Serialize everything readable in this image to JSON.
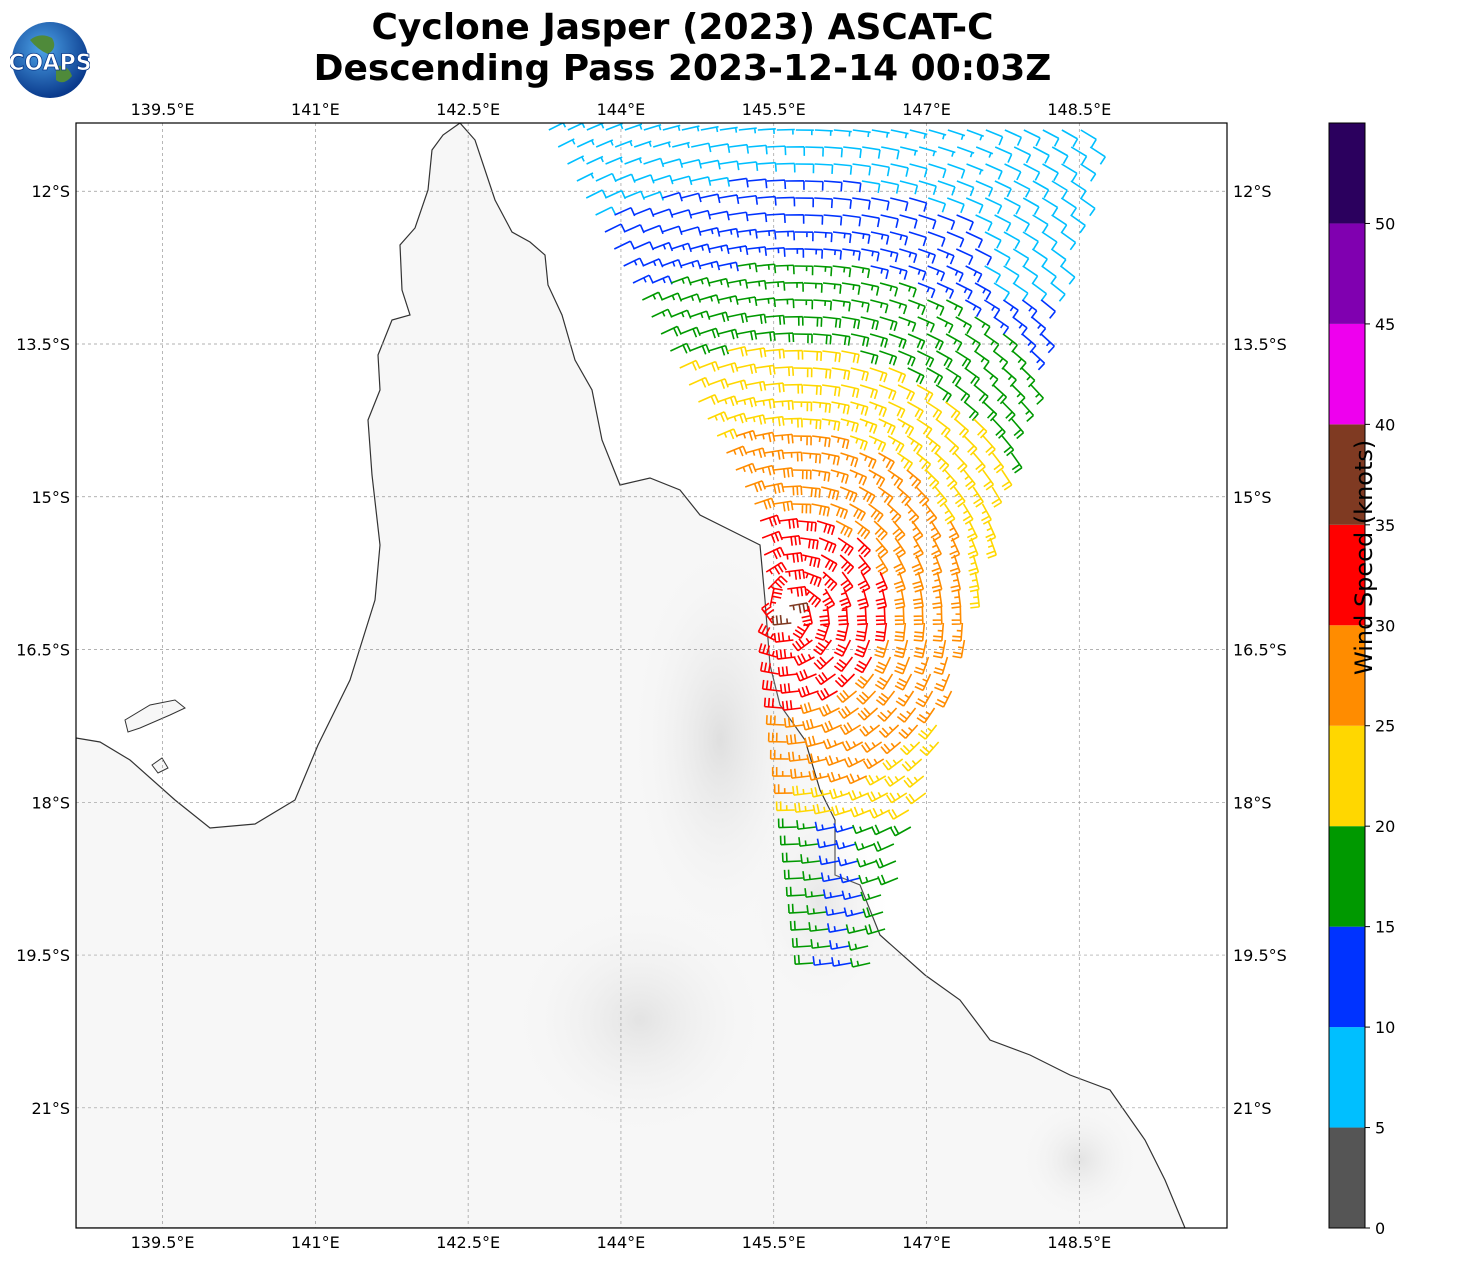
{
  "title": {
    "line1": "Cyclone Jasper (2023) ASCAT-C",
    "line2": "Descending Pass 2023-12-14 00:03Z"
  },
  "logo": {
    "text": "COAPS",
    "icon": "globe-logo-icon"
  },
  "map": {
    "lon_range": [
      138.65,
      149.95
    ],
    "lat_range": [
      -22.18,
      -11.33
    ],
    "lon_ticks": [
      "139.5°E",
      "141°E",
      "142.5°E",
      "144°E",
      "145.5°E",
      "147°E",
      "148.5°E"
    ],
    "lat_ticks": [
      "12°S",
      "13.5°S",
      "15°S",
      "16.5°S",
      "18°S",
      "19.5°S",
      "21°S"
    ],
    "gridlines": true,
    "background": "terrain-greyscale"
  },
  "colorbar": {
    "label": "Wind Speed (knots)",
    "ticks": [
      "0",
      "5",
      "10",
      "15",
      "20",
      "25",
      "30",
      "35",
      "40",
      "45",
      "50"
    ],
    "bins": [
      {
        "from": 0,
        "to": 5,
        "color": "#555555"
      },
      {
        "from": 5,
        "to": 10,
        "color": "#00bfff"
      },
      {
        "from": 10,
        "to": 15,
        "color": "#0033ff"
      },
      {
        "from": 15,
        "to": 20,
        "color": "#009900"
      },
      {
        "from": 20,
        "to": 25,
        "color": "#ffd700"
      },
      {
        "from": 25,
        "to": 30,
        "color": "#ff8c00"
      },
      {
        "from": 30,
        "to": 35,
        "color": "#ff0000"
      },
      {
        "from": 35,
        "to": 40,
        "color": "#7f3a22"
      },
      {
        "from": 40,
        "to": 45,
        "color": "#ee00ee"
      },
      {
        "from": 45,
        "to": 50,
        "color": "#8000b0"
      },
      {
        "from": 50,
        "to": 55,
        "color": "#2b005e"
      }
    ]
  }
}
